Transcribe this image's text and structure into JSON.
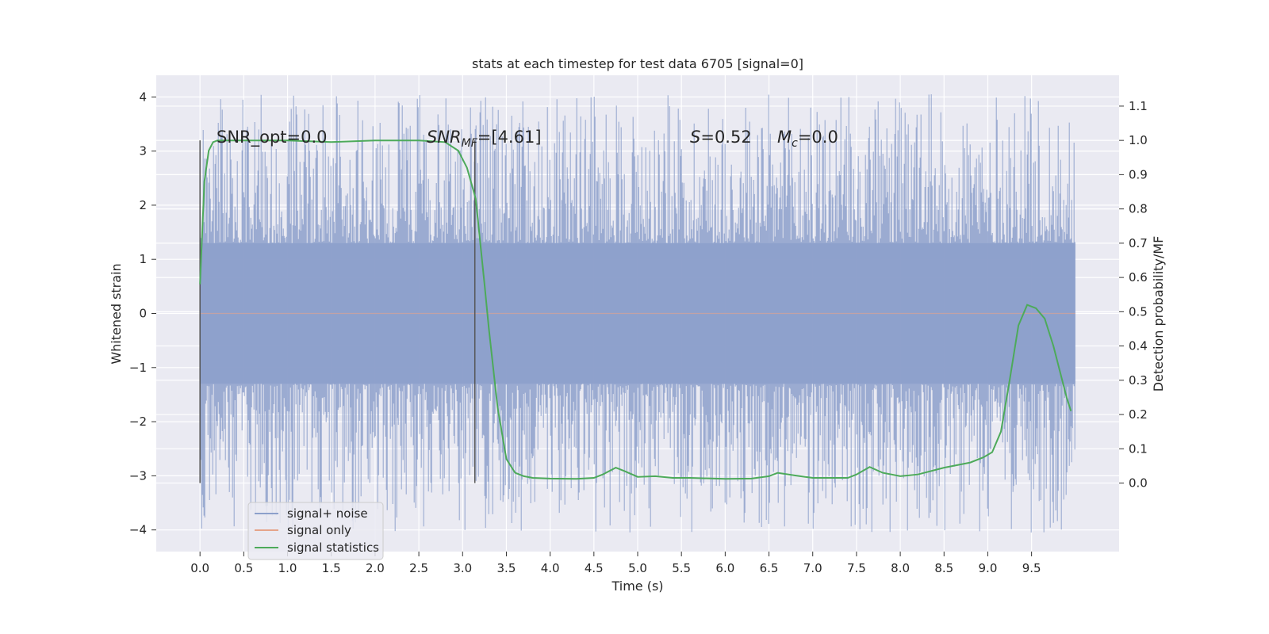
{
  "chart_data": {
    "type": "line",
    "title": "stats at each timestep for test data 6705 [signal=0]",
    "xlabel": "Time (s)",
    "ylabel": "Whitened strain",
    "y2label": "Detection probability/MF",
    "xlim": [
      -0.5,
      10.5
    ],
    "ylim": [
      -4.4,
      4.4
    ],
    "y2lim": [
      -0.2,
      1.19
    ],
    "x_ticks": [
      0.0,
      0.5,
      1.0,
      1.5,
      2.0,
      2.5,
      3.0,
      3.5,
      4.0,
      4.5,
      5.0,
      5.5,
      6.0,
      6.5,
      7.0,
      7.5,
      8.0,
      8.5,
      9.0,
      9.5
    ],
    "x_tick_labels": [
      "0.0",
      "0.5",
      "1.0",
      "1.5",
      "2.0",
      "2.5",
      "3.0",
      "3.5",
      "4.0",
      "4.5",
      "5.0",
      "5.5",
      "6.0",
      "6.5",
      "7.0",
      "7.5",
      "8.0",
      "8.5",
      "9.0",
      "9.5"
    ],
    "y_ticks": [
      -4,
      -3,
      -2,
      -1,
      0,
      1,
      2,
      3,
      4
    ],
    "y_tick_labels": [
      "−4",
      "−3",
      "−2",
      "−1",
      "0",
      "1",
      "2",
      "3",
      "4"
    ],
    "y2_ticks": [
      0.0,
      0.1,
      0.2,
      0.3,
      0.4,
      0.5,
      0.6,
      0.7,
      0.8,
      0.9,
      1.0,
      1.1
    ],
    "y2_tick_labels": [
      "0.0",
      "0.1",
      "0.2",
      "0.3",
      "0.4",
      "0.5",
      "0.6",
      "0.7",
      "0.8",
      "0.9",
      "1.0",
      "1.1"
    ],
    "grid": true,
    "legend": "bottom-left",
    "annotations": [
      "SNR_opt=0.0",
      "SNR",
      "MF",
      "=[4.61]",
      "S",
      "=0.52",
      "M",
      "c",
      "=0.0"
    ],
    "vertical_lines_x": [
      0.0,
      3.14
    ],
    "series": [
      {
        "name": "signal+ noise",
        "axis": "left",
        "style": "dense-noise",
        "x_range": [
          0.0,
          10.0
        ],
        "band_upper": 1.3,
        "band_lower": -1.3,
        "peak_high": 4.05,
        "peak_low": -4.05,
        "color": "#8da0cb"
      },
      {
        "name": "signal only",
        "axis": "left",
        "x": [
          0.0,
          10.0
        ],
        "y": [
          0.0,
          0.0
        ],
        "color": "#e5a48a"
      },
      {
        "name": "signal statistics",
        "axis": "right",
        "color": "#4daa5a",
        "x": [
          0.0,
          0.05,
          0.1,
          0.15,
          0.2,
          0.3,
          0.5,
          1.0,
          1.5,
          2.0,
          2.5,
          2.8,
          2.95,
          3.05,
          3.15,
          3.25,
          3.3,
          3.4,
          3.5,
          3.6,
          3.7,
          3.8,
          4.0,
          4.3,
          4.5,
          4.6,
          4.75,
          4.85,
          5.0,
          5.2,
          5.4,
          5.6,
          6.0,
          6.3,
          6.5,
          6.6,
          6.8,
          7.0,
          7.4,
          7.5,
          7.65,
          7.8,
          8.0,
          8.2,
          8.5,
          8.8,
          8.95,
          9.05,
          9.15,
          9.25,
          9.35,
          9.45,
          9.55,
          9.65,
          9.75,
          9.9,
          9.95
        ],
        "y": [
          0.58,
          0.88,
          0.97,
          0.995,
          1.0,
          1.0,
          1.0,
          1.0,
          0.995,
          1.0,
          1.0,
          0.995,
          0.97,
          0.92,
          0.83,
          0.58,
          0.45,
          0.22,
          0.07,
          0.03,
          0.02,
          0.015,
          0.013,
          0.012,
          0.015,
          0.025,
          0.045,
          0.035,
          0.018,
          0.02,
          0.015,
          0.015,
          0.012,
          0.013,
          0.02,
          0.03,
          0.022,
          0.015,
          0.015,
          0.025,
          0.047,
          0.03,
          0.02,
          0.025,
          0.045,
          0.06,
          0.075,
          0.09,
          0.15,
          0.3,
          0.46,
          0.52,
          0.51,
          0.48,
          0.4,
          0.25,
          0.21
        ]
      }
    ]
  }
}
